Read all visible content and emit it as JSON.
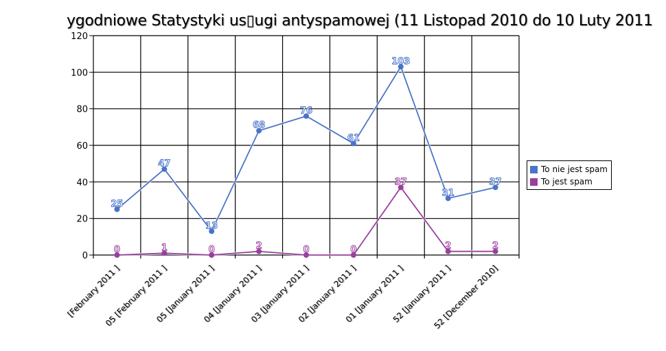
{
  "chart_data": {
    "type": "line",
    "title": "ygodniowe Statystyki us▯ugi antyspamowej (11 Listopad 2010  do  10 Luty 2011",
    "xlabel": "",
    "ylabel": "",
    "ylim": [
      0,
      120
    ],
    "yticks": [
      0,
      20,
      40,
      60,
      80,
      100,
      120
    ],
    "grid": true,
    "legend_position": "right",
    "categories": [
      "[February 2011 ]",
      "05 [February 2011 ]",
      "05 [January 2011 ]",
      "04 [January 2011 ]",
      "03 [January 2011 ]",
      "02 [January 2011 ]",
      "01 [January 2011 ]",
      "52 [January 2011 ]",
      "52 [December 2010]"
    ],
    "series": [
      {
        "name": "To nie jest spam",
        "color": "#4a74c9",
        "values": [
          25,
          47,
          13,
          68,
          76,
          61,
          103,
          31,
          37
        ]
      },
      {
        "name": "To jest spam",
        "color": "#9a3f9e",
        "values": [
          0,
          1,
          0,
          2,
          0,
          0,
          37,
          2,
          2
        ]
      }
    ]
  },
  "legend": {
    "items": [
      {
        "label": "To nie jest spam",
        "color": "#4a74c9"
      },
      {
        "label": "To jest spam",
        "color": "#9a3f9e"
      }
    ]
  }
}
